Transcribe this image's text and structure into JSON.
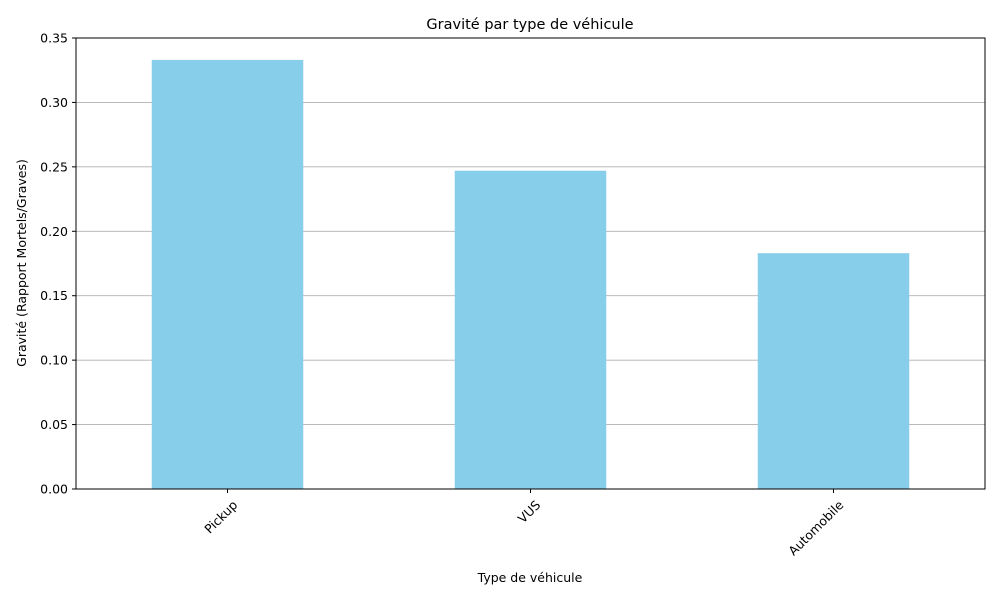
{
  "chart_data": {
    "type": "bar",
    "title": "Gravité par type de véhicule",
    "xlabel": "Type de véhicule",
    "ylabel": "Gravité (Rapport Mortels/Graves)",
    "categories": [
      "Pickup",
      "VUS",
      "Automobile"
    ],
    "values": [
      0.333,
      0.247,
      0.183
    ],
    "ylim": [
      0,
      0.35
    ],
    "yticks": [
      "0.00",
      "0.05",
      "0.10",
      "0.15",
      "0.20",
      "0.25",
      "0.30",
      "0.35"
    ],
    "grid": "y-axis",
    "bar_color": "#87ceeb",
    "x_tick_rotation": "45 degrees"
  }
}
